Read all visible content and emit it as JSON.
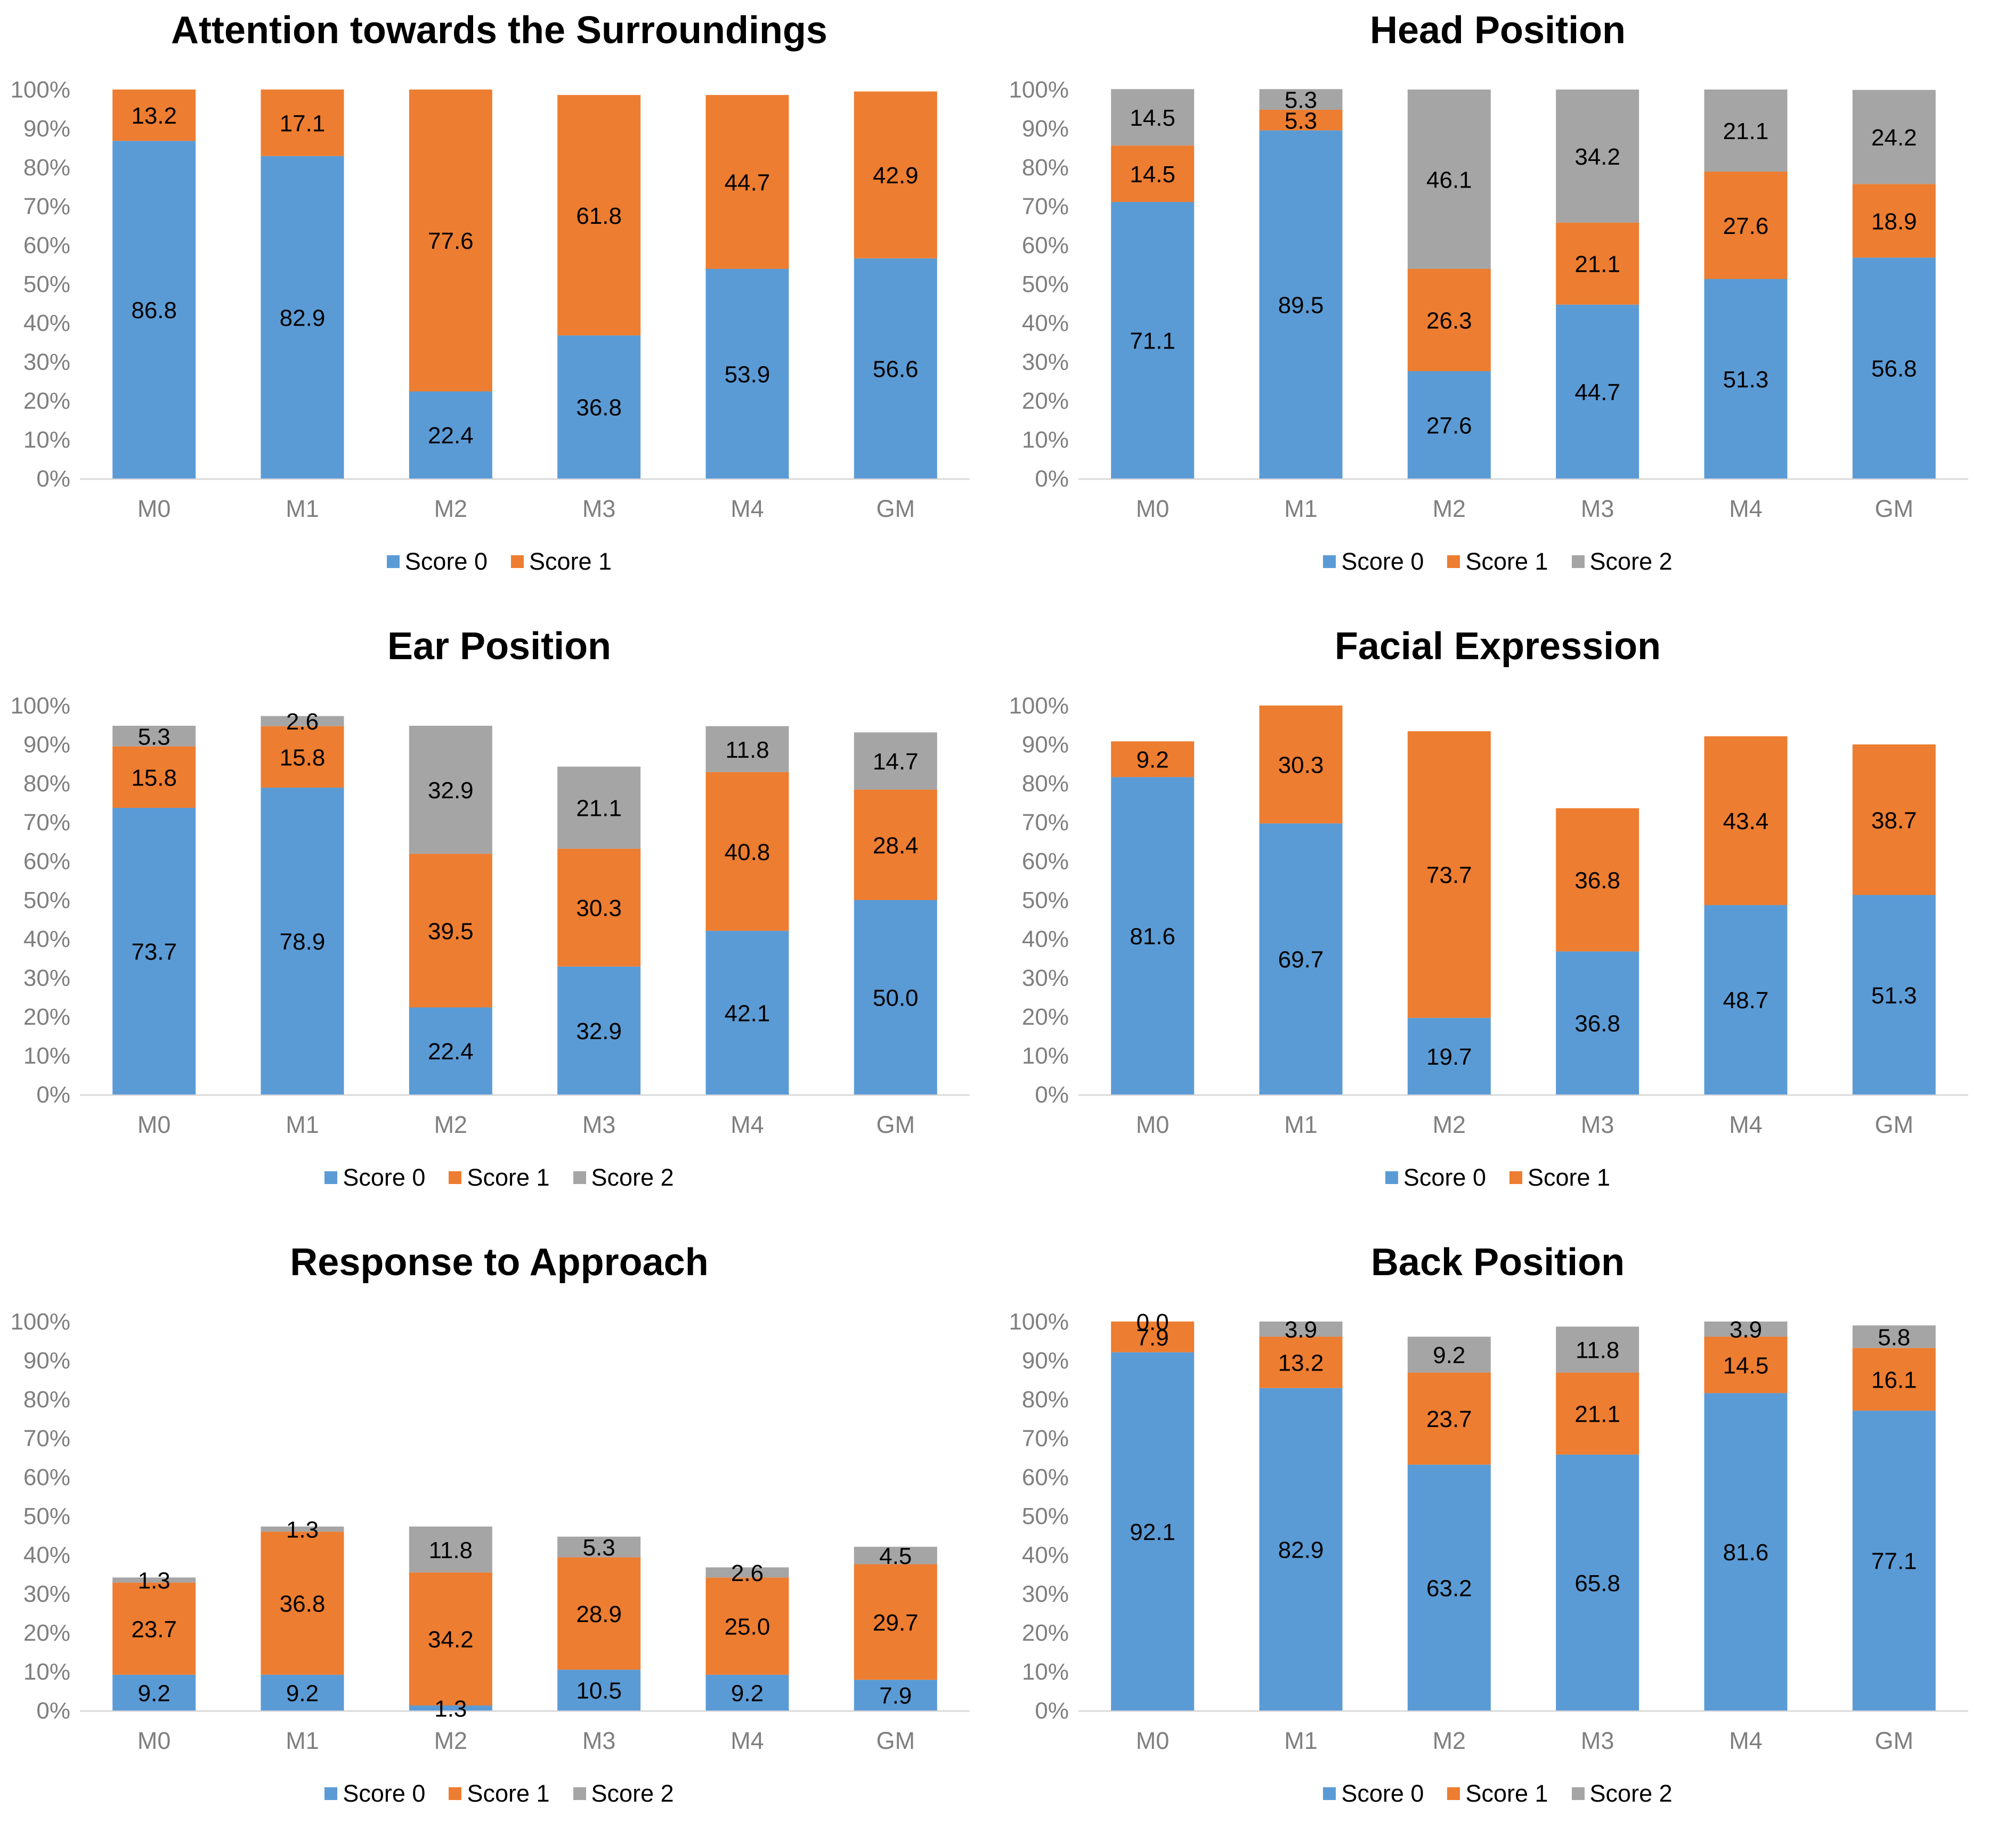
{
  "colors": {
    "Score 0": "#5b9bd5",
    "Score 1": "#ed7d31",
    "Score 2": "#a5a5a5",
    "axis": "#d9d9d9",
    "tick_text": "#7f7f7f"
  },
  "chart_data": [
    {
      "type": "bar",
      "stacked": true,
      "title": "Attention towards the Surroundings",
      "categories": [
        "M0",
        "M1",
        "M2",
        "M3",
        "M4",
        "GM"
      ],
      "series": [
        {
          "name": "Score 0",
          "values": [
            86.8,
            82.9,
            22.4,
            36.8,
            53.9,
            56.6
          ]
        },
        {
          "name": "Score 1",
          "values": [
            13.2,
            17.1,
            77.6,
            61.8,
            44.7,
            42.9
          ]
        }
      ],
      "yticks": [
        "0%",
        "10%",
        "20%",
        "30%",
        "40%",
        "50%",
        "60%",
        "70%",
        "80%",
        "90%",
        "100%"
      ],
      "ylim": [
        0,
        100
      ],
      "xlabel": "",
      "ylabel": "",
      "legend_position": "bottom"
    },
    {
      "type": "bar",
      "stacked": true,
      "title": "Head Position",
      "categories": [
        "M0",
        "M1",
        "M2",
        "M3",
        "M4",
        "GM"
      ],
      "series": [
        {
          "name": "Score 0",
          "values": [
            71.1,
            89.5,
            27.6,
            44.7,
            51.3,
            56.8
          ]
        },
        {
          "name": "Score 1",
          "values": [
            14.5,
            5.3,
            26.3,
            21.1,
            27.6,
            18.9
          ]
        },
        {
          "name": "Score 2",
          "values": [
            14.5,
            5.3,
            46.1,
            34.2,
            21.1,
            24.2
          ]
        }
      ],
      "yticks": [
        "0%",
        "10%",
        "20%",
        "30%",
        "40%",
        "50%",
        "60%",
        "70%",
        "80%",
        "90%",
        "100%"
      ],
      "ylim": [
        0,
        100
      ],
      "xlabel": "",
      "ylabel": "",
      "legend_position": "bottom"
    },
    {
      "type": "bar",
      "stacked": true,
      "title": "Ear Position",
      "categories": [
        "M0",
        "M1",
        "M2",
        "M3",
        "M4",
        "GM"
      ],
      "series": [
        {
          "name": "Score 0",
          "values": [
            73.7,
            78.9,
            22.4,
            32.9,
            42.1,
            50.0
          ]
        },
        {
          "name": "Score 1",
          "values": [
            15.8,
            15.8,
            39.5,
            30.3,
            40.8,
            28.4
          ]
        },
        {
          "name": "Score 2",
          "values": [
            5.3,
            2.6,
            32.9,
            21.1,
            11.8,
            14.7
          ]
        }
      ],
      "yticks": [
        "0%",
        "10%",
        "20%",
        "30%",
        "40%",
        "50%",
        "60%",
        "70%",
        "80%",
        "90%",
        "100%"
      ],
      "ylim": [
        0,
        100
      ],
      "xlabel": "",
      "ylabel": "",
      "legend_position": "bottom"
    },
    {
      "type": "bar",
      "stacked": true,
      "title": "Facial Expression",
      "categories": [
        "M0",
        "M1",
        "M2",
        "M3",
        "M4",
        "GM"
      ],
      "series": [
        {
          "name": "Score 0",
          "values": [
            81.6,
            69.7,
            19.7,
            36.8,
            48.7,
            51.3
          ]
        },
        {
          "name": "Score 1",
          "values": [
            9.2,
            30.3,
            73.7,
            36.8,
            43.4,
            38.7
          ]
        }
      ],
      "yticks": [
        "0%",
        "10%",
        "20%",
        "30%",
        "40%",
        "50%",
        "60%",
        "70%",
        "80%",
        "90%",
        "100%"
      ],
      "ylim": [
        0,
        100
      ],
      "xlabel": "",
      "ylabel": "",
      "legend_position": "bottom"
    },
    {
      "type": "bar",
      "stacked": true,
      "title": "Response to Approach",
      "categories": [
        "M0",
        "M1",
        "M2",
        "M3",
        "M4",
        "GM"
      ],
      "series": [
        {
          "name": "Score 0",
          "values": [
            9.2,
            9.2,
            1.3,
            10.5,
            9.2,
            7.9
          ]
        },
        {
          "name": "Score 1",
          "values": [
            23.7,
            36.8,
            34.2,
            28.9,
            25.0,
            29.7
          ]
        },
        {
          "name": "Score 2",
          "values": [
            1.3,
            1.3,
            11.8,
            5.3,
            2.6,
            4.5
          ]
        }
      ],
      "yticks": [
        "0%",
        "10%",
        "20%",
        "30%",
        "40%",
        "50%",
        "60%",
        "70%",
        "80%",
        "90%",
        "100%"
      ],
      "ylim": [
        0,
        100
      ],
      "xlabel": "",
      "ylabel": "",
      "legend_position": "bottom"
    },
    {
      "type": "bar",
      "stacked": true,
      "title": "Back Position",
      "categories": [
        "M0",
        "M1",
        "M2",
        "M3",
        "M4",
        "GM"
      ],
      "series": [
        {
          "name": "Score 0",
          "values": [
            92.1,
            82.9,
            63.2,
            65.8,
            81.6,
            77.1
          ]
        },
        {
          "name": "Score 1",
          "values": [
            7.9,
            13.2,
            23.7,
            21.1,
            14.5,
            16.1
          ]
        },
        {
          "name": "Score 2",
          "values": [
            0.0,
            3.9,
            9.2,
            11.8,
            3.9,
            5.8
          ]
        }
      ],
      "yticks": [
        "0%",
        "10%",
        "20%",
        "30%",
        "40%",
        "50%",
        "60%",
        "70%",
        "80%",
        "90%",
        "100%"
      ],
      "ylim": [
        0,
        100
      ],
      "xlabel": "",
      "ylabel": "",
      "legend_position": "bottom"
    }
  ]
}
